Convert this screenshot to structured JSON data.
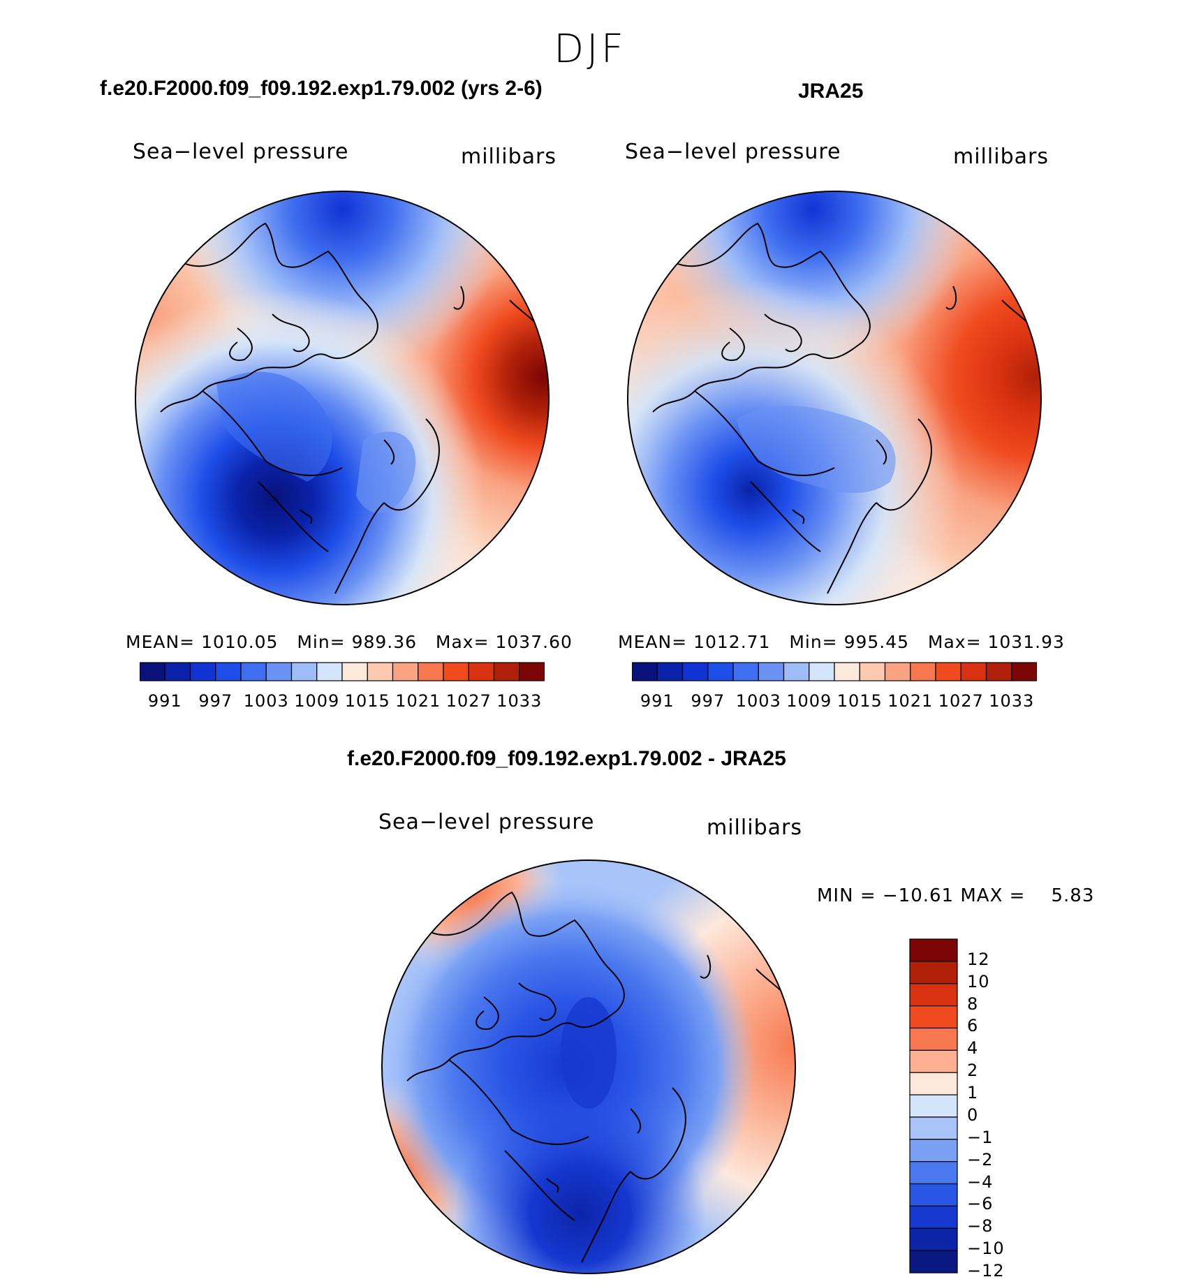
{
  "figure": {
    "season": "DJF"
  },
  "panel_model": {
    "case_title": "f.e20.F2000.f09_f09.192.exp1.79.002 (yrs 2-6)",
    "variable_label": "Sea−level pressure",
    "units_label": "millibars",
    "stats": {
      "mean_label": "MEAN=",
      "mean": "1010.05",
      "min_label": "Min=",
      "min": "989.36",
      "max_label": "Max=",
      "max": "1037.60"
    }
  },
  "panel_obs": {
    "case_title": "JRA25",
    "variable_label": "Sea−level pressure",
    "units_label": "millibars",
    "stats": {
      "mean_label": "MEAN=",
      "mean": "1012.71",
      "min_label": "Min=",
      "min": "995.45",
      "max_label": "Max=",
      "max": "1031.93"
    }
  },
  "panel_diff": {
    "case_title": "f.e20.F2000.f09_f09.192.exp1.79.002 - JRA25",
    "variable_label": "Sea−level pressure",
    "units_label": "millibars",
    "stats_line": "MIN = −10.61 MAX =    5.83"
  },
  "colorbar_abs": {
    "colors": [
      "#08127a",
      "#0a22aa",
      "#1033d4",
      "#1e4ee8",
      "#3f6ef0",
      "#6a91f4",
      "#9ebcf8",
      "#d2e5fb",
      "#fde8dc",
      "#fcc8ae",
      "#f9a383",
      "#f7784f",
      "#f04a1f",
      "#d93210",
      "#b02008",
      "#7c0505"
    ],
    "tick_labels": [
      "991",
      "997",
      "1003",
      "1009",
      "1015",
      "1021",
      "1027",
      "1033"
    ]
  },
  "colorbar_diff": {
    "colors_top_to_bottom": [
      "#7c0505",
      "#b02008",
      "#d93210",
      "#f04a1f",
      "#f7784f",
      "#fcb091",
      "#fde8dc",
      "#d2e5fb",
      "#a8c4f9",
      "#7aa0f4",
      "#4a78ee",
      "#2a56e6",
      "#1638d0",
      "#0c24a8",
      "#0a1882"
    ],
    "tick_labels_top_to_bottom": [
      "12",
      "10",
      "8",
      "6",
      "4",
      "2",
      "1",
      "0",
      "−1",
      "−2",
      "−4",
      "−6",
      "−8",
      "−10",
      "−12"
    ]
  }
}
